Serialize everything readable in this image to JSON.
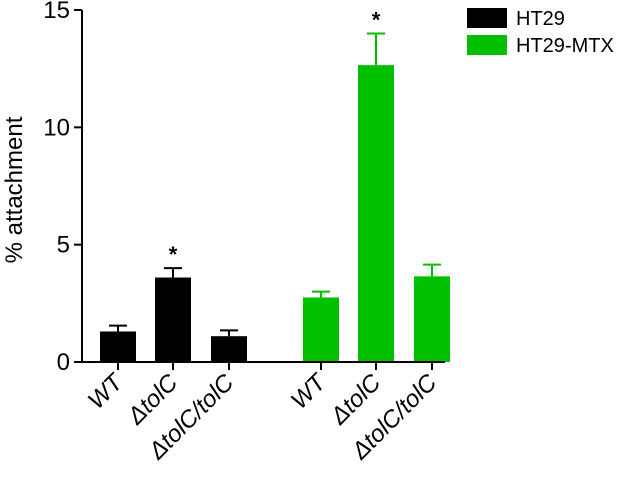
{
  "chart_data": {
    "type": "bar",
    "ylabel": "% attachment",
    "ylim": [
      0,
      15
    ],
    "yticks": [
      0,
      5,
      10,
      15
    ],
    "legend_position": "top-right",
    "groups": [
      {
        "name": "HT29",
        "color": "#000000",
        "categories": [
          "WT",
          "ΔtolC",
          "ΔtolC/tolC"
        ],
        "values": [
          1.3,
          3.6,
          1.1
        ],
        "errors": [
          0.25,
          0.4,
          0.25
        ],
        "significance": [
          "",
          "*",
          ""
        ]
      },
      {
        "name": "HT29-MTX",
        "color": "#00C000",
        "categories": [
          "WT",
          "ΔtolC",
          "ΔtolC/tolC"
        ],
        "values": [
          2.75,
          12.65,
          3.65
        ],
        "errors": [
          0.25,
          1.35,
          0.5
        ],
        "significance": [
          "",
          "*",
          ""
        ]
      }
    ]
  }
}
